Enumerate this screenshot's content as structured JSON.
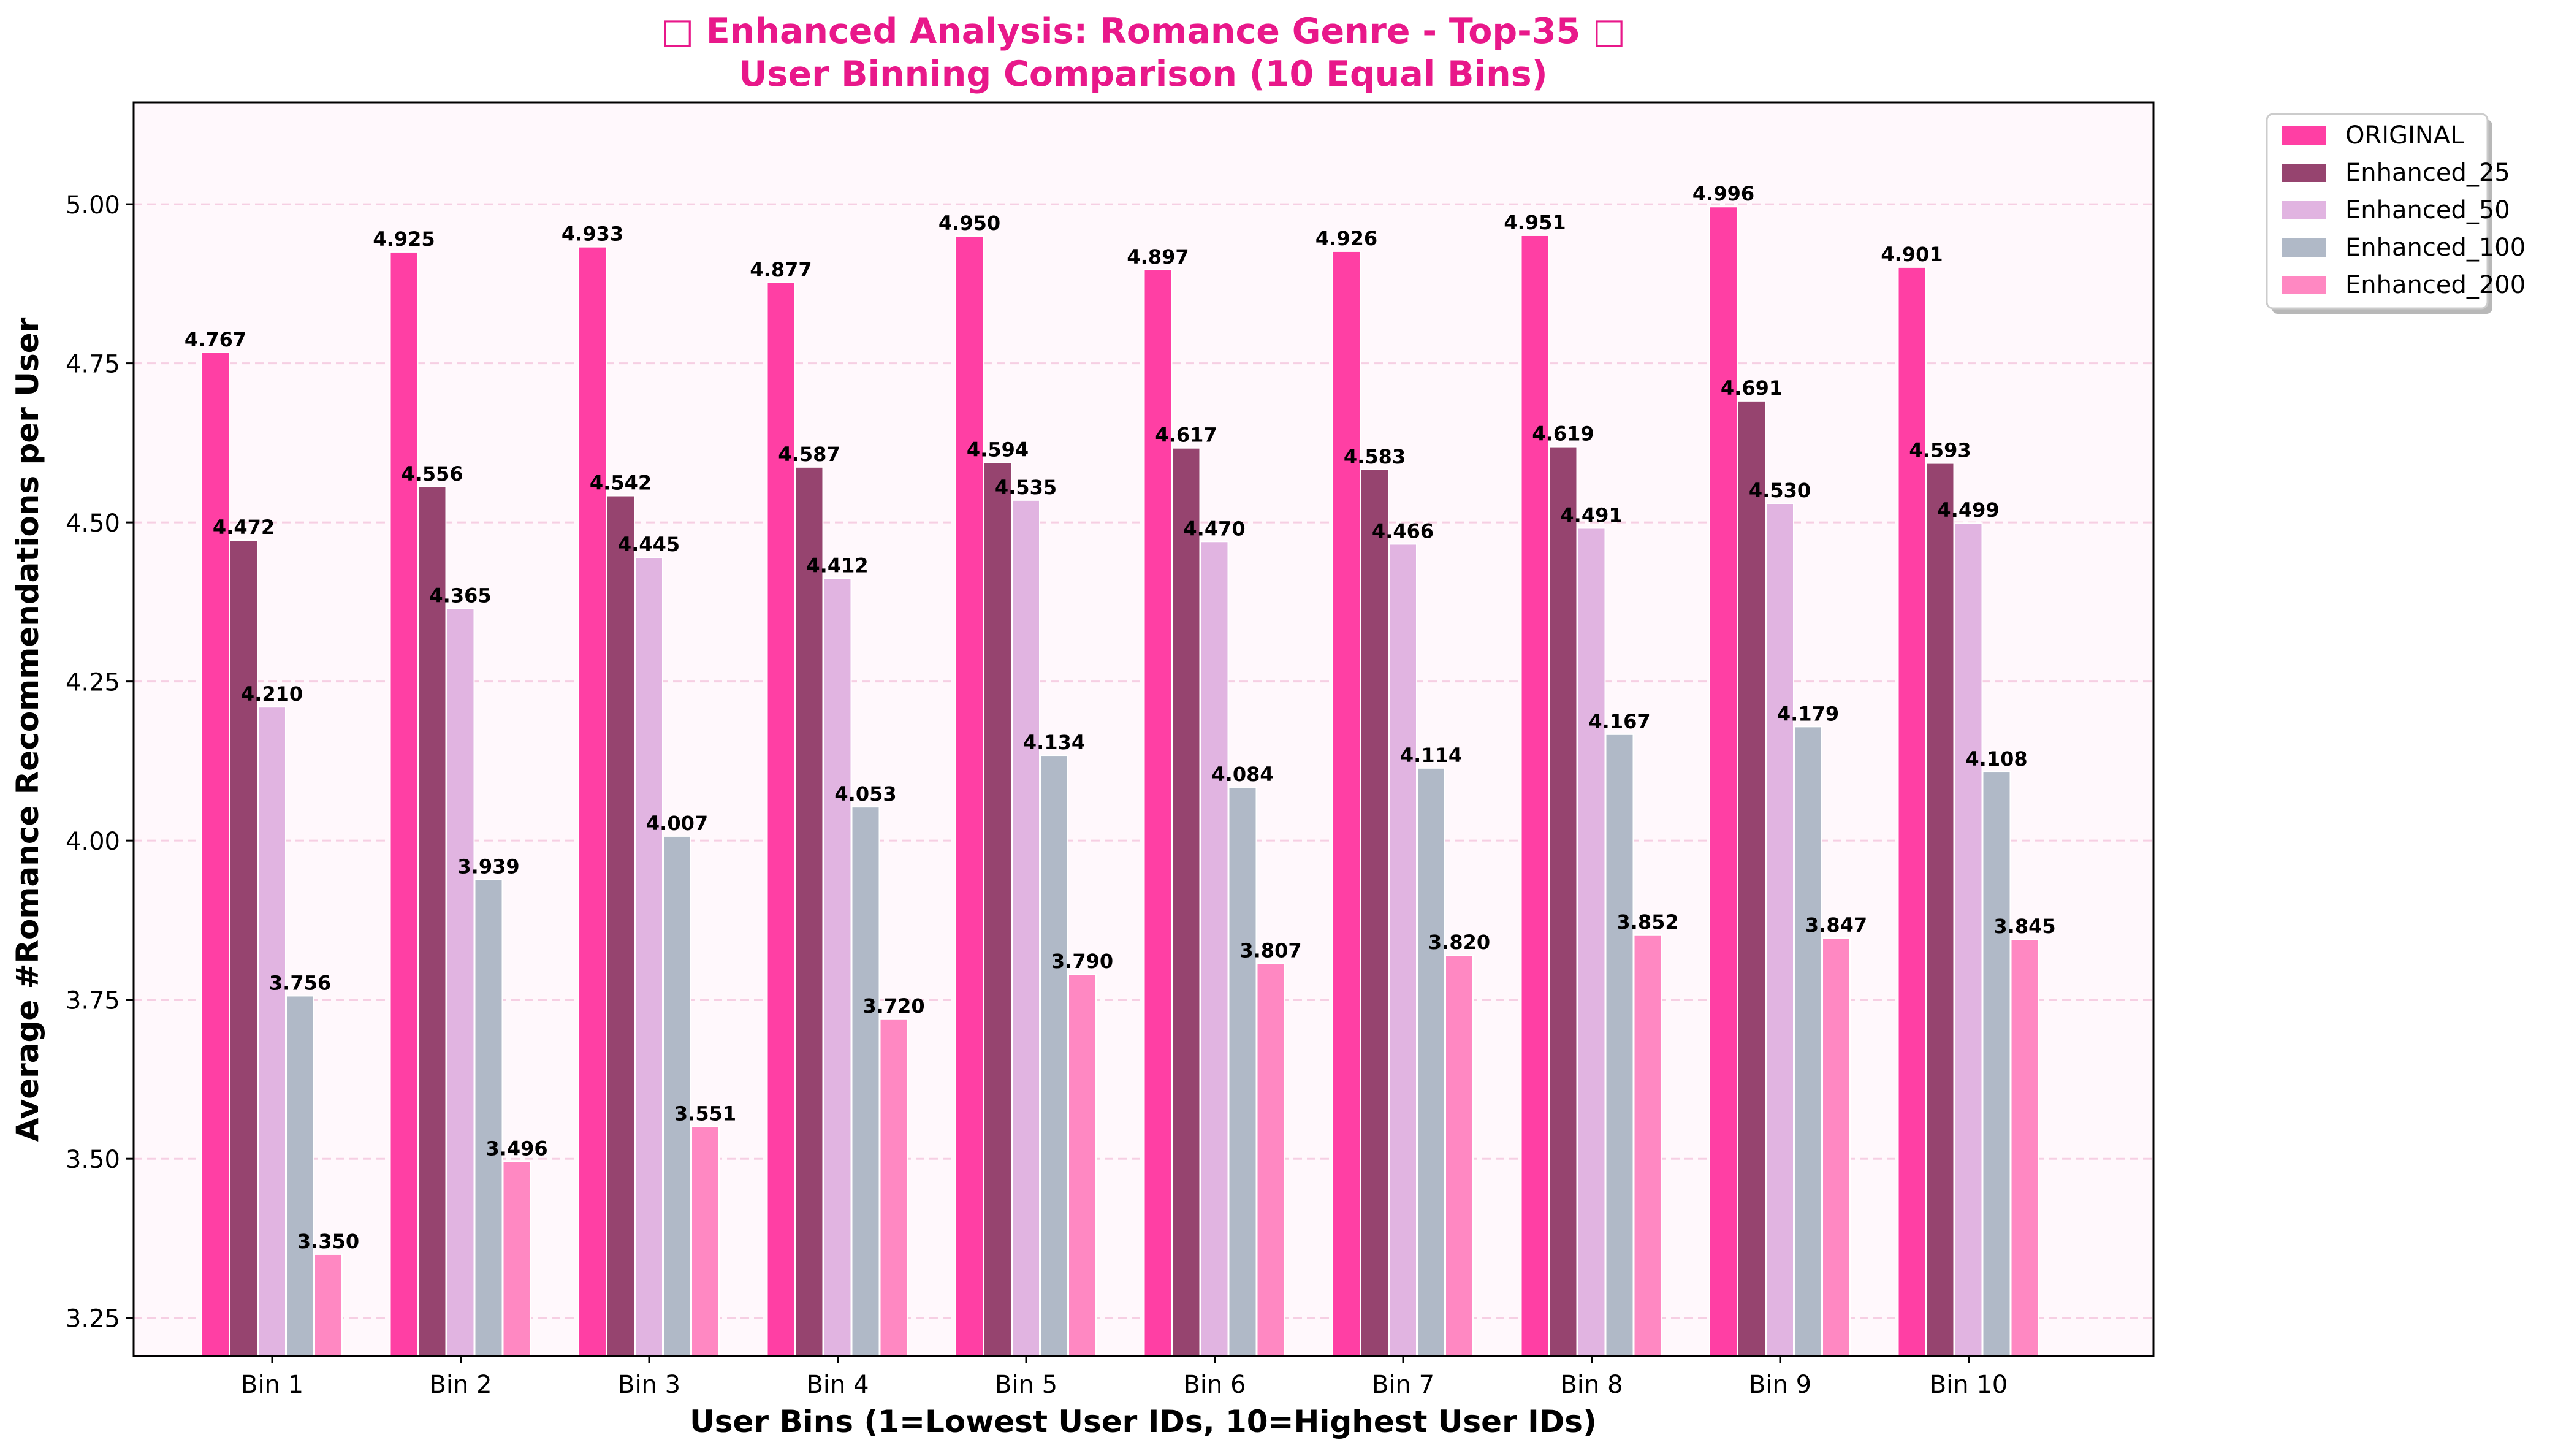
{
  "chart_data": {
    "type": "bar",
    "title_line1": "□ Enhanced Analysis: Romance Genre - Top-35 □",
    "title_line2": "User Binning Comparison (10 Equal Bins)",
    "xlabel": "User Bins (1=Lowest User IDs, 10=Highest User IDs)",
    "ylabel": "Average #Romance Recommendations per User",
    "ylim": [
      3.19,
      5.16
    ],
    "yticks": [
      3.25,
      3.5,
      3.75,
      4.0,
      4.25,
      4.5,
      4.75,
      5.0
    ],
    "ytick_labels": [
      "3.25",
      "3.50",
      "3.75",
      "4.00",
      "4.25",
      "4.50",
      "4.75",
      "5.00"
    ],
    "grid": true,
    "legend_position": "outside top-right",
    "categories": [
      "Bin 1",
      "Bin 2",
      "Bin 3",
      "Bin 4",
      "Bin 5",
      "Bin 6",
      "Bin 7",
      "Bin 8",
      "Bin 9",
      "Bin 10"
    ],
    "series": [
      {
        "name": "ORIGINAL",
        "color": "#ff3fa4",
        "values": [
          4.767,
          4.925,
          4.933,
          4.877,
          4.95,
          4.897,
          4.926,
          4.951,
          4.996,
          4.901
        ],
        "labels": [
          "4.767",
          "4.925",
          "4.933",
          "4.877",
          "4.950",
          "4.897",
          "4.926",
          "4.951",
          "4.996",
          "4.901"
        ]
      },
      {
        "name": "Enhanced_25",
        "color": "#96446f",
        "values": [
          4.472,
          4.556,
          4.542,
          4.587,
          4.594,
          4.617,
          4.583,
          4.619,
          4.691,
          4.593
        ],
        "labels": [
          "4.472",
          "4.556",
          "4.542",
          "4.587",
          "4.594",
          "4.617",
          "4.583",
          "4.619",
          "4.691",
          "4.593"
        ]
      },
      {
        "name": "Enhanced_50",
        "color": "#e1b4e1",
        "values": [
          4.21,
          4.365,
          4.445,
          4.412,
          4.535,
          4.47,
          4.466,
          4.491,
          4.53,
          4.499
        ],
        "labels": [
          "4.210",
          "4.365",
          "4.445",
          "4.412",
          "4.535",
          "4.470",
          "4.466",
          "4.491",
          "4.530",
          "4.499"
        ]
      },
      {
        "name": "Enhanced_100",
        "color": "#b0b9c7",
        "values": [
          3.756,
          3.939,
          4.007,
          4.053,
          4.134,
          4.084,
          4.114,
          4.167,
          4.179,
          4.108
        ],
        "labels": [
          "3.756",
          "3.939",
          "4.007",
          "4.053",
          "4.134",
          "4.084",
          "4.114",
          "4.167",
          "4.179",
          "4.108"
        ]
      },
      {
        "name": "Enhanced_200",
        "color": "#ff88c2",
        "values": [
          3.35,
          3.496,
          3.551,
          3.72,
          3.79,
          3.807,
          3.82,
          3.852,
          3.847,
          3.845
        ],
        "labels": [
          "3.350",
          "3.496",
          "3.551",
          "3.720",
          "3.790",
          "3.807",
          "3.820",
          "3.852",
          "3.847",
          "3.845"
        ]
      }
    ],
    "colors": {
      "title": "#e8188a",
      "plot_background": "#fff8fc",
      "grid": "#f5c6dd",
      "axis": "#000000"
    }
  }
}
